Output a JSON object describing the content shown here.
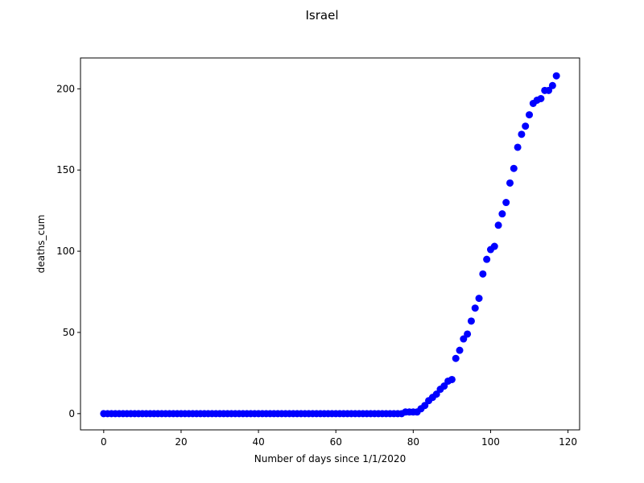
{
  "chart_data": {
    "type": "scatter",
    "title": "Israel",
    "xlabel": "Number of days since 1/1/2020",
    "ylabel": "deaths_cum",
    "xlim": [
      -6,
      123
    ],
    "ylim": [
      -10,
      219
    ],
    "xticks": [
      0,
      20,
      40,
      60,
      80,
      100,
      120
    ],
    "yticks": [
      0,
      50,
      100,
      150,
      200
    ],
    "grid": false,
    "marker_color": "#0000ff",
    "series": [
      {
        "x": [
          0,
          1,
          2,
          3,
          4,
          5,
          6,
          7,
          8,
          9,
          10,
          11,
          12,
          13,
          14,
          15,
          16,
          17,
          18,
          19,
          20,
          21,
          22,
          23,
          24,
          25,
          26,
          27,
          28,
          29,
          30,
          31,
          32,
          33,
          34,
          35,
          36,
          37,
          38,
          39,
          40,
          41,
          42,
          43,
          44,
          45,
          46,
          47,
          48,
          49,
          50,
          51,
          52,
          53,
          54,
          55,
          56,
          57,
          58,
          59,
          60,
          61,
          62,
          63,
          64,
          65,
          66,
          67,
          68,
          69,
          70,
          71,
          72,
          73,
          74,
          75,
          76,
          77,
          78,
          79,
          80,
          81,
          82,
          83,
          84,
          85,
          86,
          87,
          88,
          89,
          90,
          91,
          92,
          93,
          94,
          95,
          96,
          97,
          98,
          99,
          100,
          101,
          102,
          103,
          104,
          105,
          106,
          107,
          108,
          109,
          110,
          111,
          112,
          113,
          114,
          115,
          116,
          117
        ],
        "y": [
          0,
          0,
          0,
          0,
          0,
          0,
          0,
          0,
          0,
          0,
          0,
          0,
          0,
          0,
          0,
          0,
          0,
          0,
          0,
          0,
          0,
          0,
          0,
          0,
          0,
          0,
          0,
          0,
          0,
          0,
          0,
          0,
          0,
          0,
          0,
          0,
          0,
          0,
          0,
          0,
          0,
          0,
          0,
          0,
          0,
          0,
          0,
          0,
          0,
          0,
          0,
          0,
          0,
          0,
          0,
          0,
          0,
          0,
          0,
          0,
          0,
          0,
          0,
          0,
          0,
          0,
          0,
          0,
          0,
          0,
          0,
          0,
          0,
          0,
          0,
          0,
          0,
          0,
          1,
          1,
          1,
          1,
          3,
          5,
          8,
          10,
          12,
          15,
          17,
          20,
          21,
          34,
          39,
          46,
          49,
          57,
          65,
          71,
          86,
          95,
          101,
          103,
          116,
          123,
          130,
          142,
          151,
          164,
          172,
          177,
          184,
          191,
          193,
          194,
          199,
          199,
          202,
          208
        ]
      }
    ]
  }
}
